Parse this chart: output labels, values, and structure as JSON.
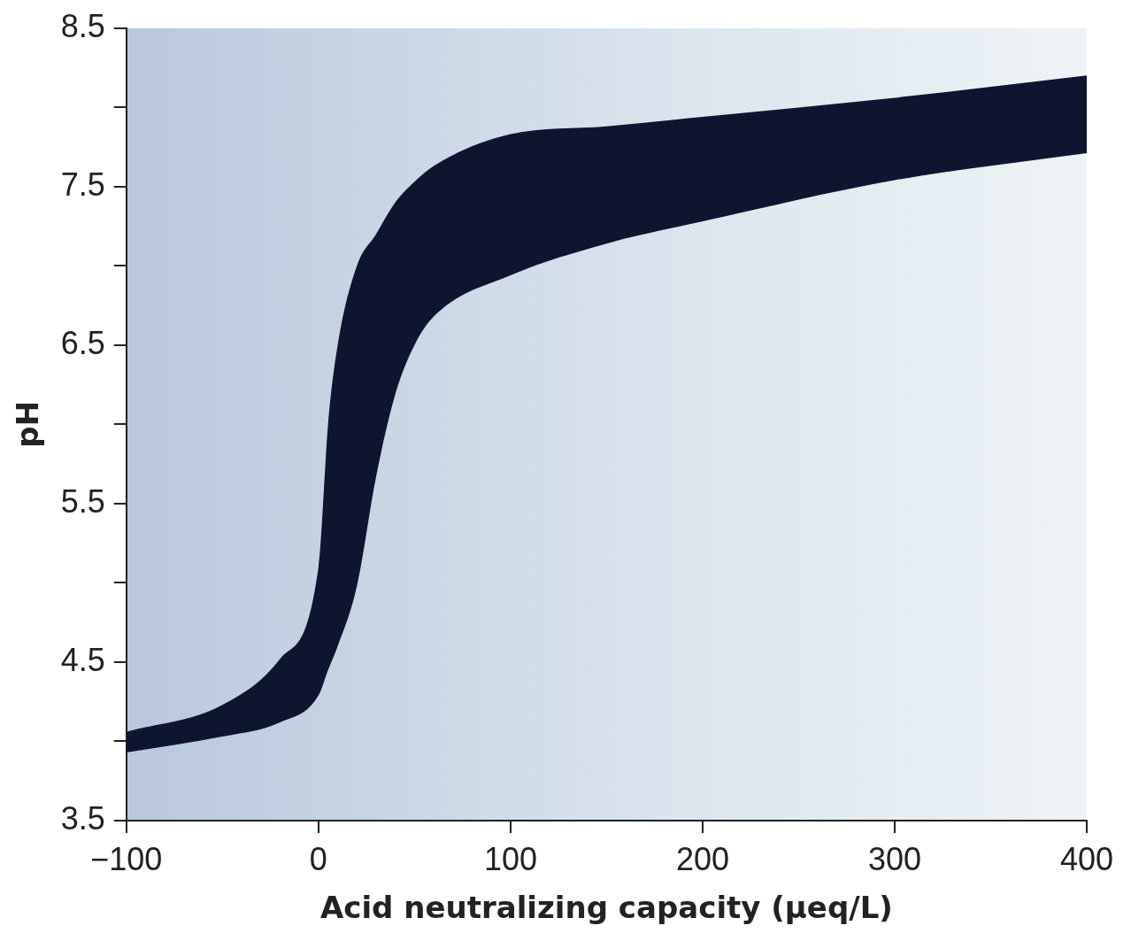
{
  "chart_data": {
    "type": "line",
    "xlabel": "Acid neutralizing capacity (μeq/L)",
    "ylabel": "pH",
    "x": [
      -100,
      -50,
      -20,
      0,
      5,
      10,
      20,
      30,
      40,
      50,
      60,
      100,
      150,
      200,
      300,
      400
    ],
    "series": [
      {
        "color": "#0d1530",
        "values": [
          null,
          null,
          null,
          null,
          null,
          null,
          null,
          null,
          null,
          null,
          null,
          null,
          null,
          null,
          null,
          null
        ],
        "lower": [
          3.93,
          4.03,
          4.12,
          4.29,
          4.45,
          4.6,
          4.98,
          5.67,
          6.19,
          6.5,
          6.68,
          6.94,
          7.14,
          7.28,
          7.54,
          7.71
        ],
        "upper": [
          4.06,
          4.23,
          4.52,
          5.1,
          6.0,
          6.5,
          7.0,
          7.2,
          7.4,
          7.53,
          7.63,
          7.83,
          7.88,
          7.94,
          8.06,
          8.2
        ]
      }
    ],
    "xlim": [
      -100,
      400
    ],
    "xticks": [
      -100,
      0,
      100,
      200,
      300,
      400
    ],
    "ylim": [
      3.5,
      8.5
    ],
    "yticks": [
      3.5,
      {
        "value": 4,
        "label": null
      },
      4.5,
      {
        "value": 5,
        "label": null
      },
      5.5,
      {
        "value": 6,
        "label": null
      },
      6.5,
      {
        "value": 7,
        "label": null
      },
      7.5,
      {
        "value": 8,
        "label": null
      },
      8.5
    ],
    "grid": false,
    "legend": false
  }
}
